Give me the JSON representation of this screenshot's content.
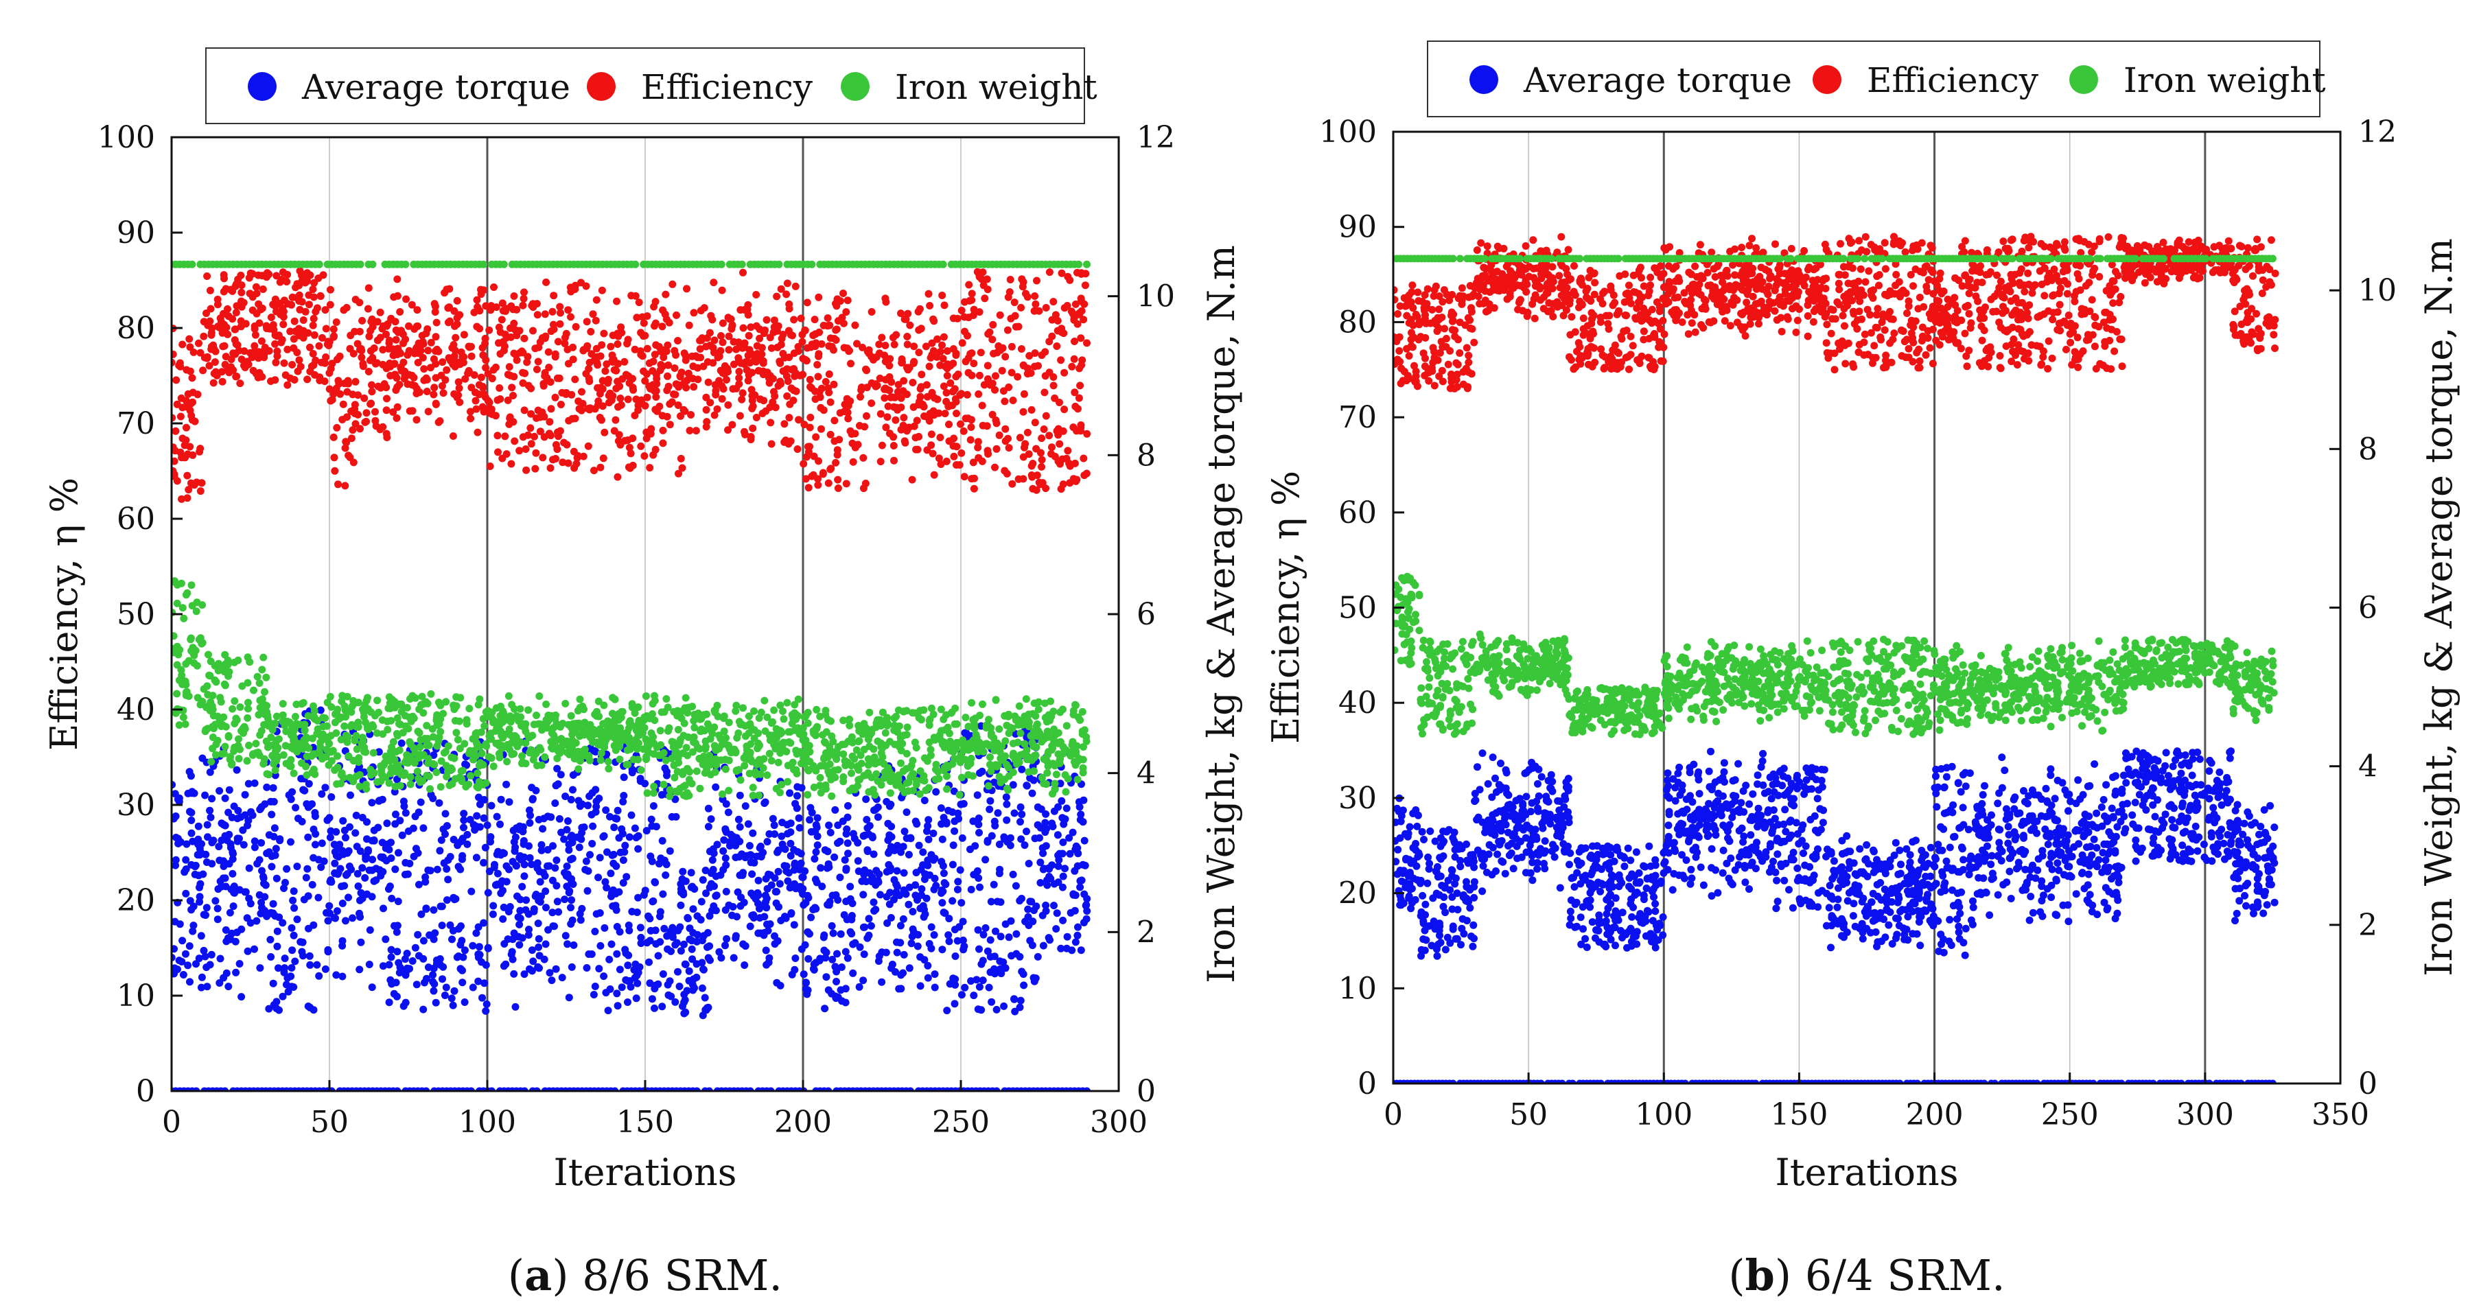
{
  "figure": {
    "panels": [
      {
        "caption_letter": "a",
        "caption_text": "8/6 SRM."
      },
      {
        "caption_letter": "b",
        "caption_text": "6/4 SRM."
      }
    ]
  },
  "chart_data": [
    {
      "type": "scatter",
      "panel": "a",
      "title": "(a) 8/6 SRM.",
      "xlabel": "Iterations",
      "ylabel_left": "Efficiency, η   %",
      "ylabel_right": "Iron Weight, kg & Average torque, N.m",
      "xlim": [
        0,
        300
      ],
      "ylim_left": [
        0,
        100
      ],
      "ylim_right": [
        0,
        12
      ],
      "x_ticks": [
        0,
        50,
        100,
        150,
        200,
        250,
        300
      ],
      "y_left_ticks": [
        0,
        10,
        20,
        30,
        40,
        50,
        60,
        70,
        80,
        90,
        100
      ],
      "y_right_ticks": [
        0,
        2,
        4,
        6,
        8,
        10,
        12
      ],
      "grid": "vertical",
      "major_vlines": [
        100,
        200
      ],
      "legend": [
        "Average torque",
        "Efficiency",
        "Iron weight"
      ],
      "legend_position": "top",
      "series": [
        {
          "name": "Average torque",
          "color": "#0a10f0",
          "axis": "right",
          "x_max": 290,
          "count": 2000,
          "segments": [
            [
              0,
              15,
              1.3,
              4.2,
              0
            ],
            [
              15,
              30,
              1.1,
              4.6,
              1
            ],
            [
              30,
              50,
              1.0,
              4.8,
              0
            ],
            [
              50,
              70,
              0.95,
              4.8,
              1
            ],
            [
              70,
              100,
              1.0,
              4.4,
              0
            ],
            [
              100,
              130,
              1.0,
              4.5,
              1
            ],
            [
              130,
              160,
              1.0,
              4.4,
              0
            ],
            [
              160,
              170,
              0.95,
              2.8,
              0
            ],
            [
              170,
              200,
              1.2,
              4.3,
              1
            ],
            [
              200,
              215,
              1.0,
              3.6,
              0
            ],
            [
              215,
              245,
              1.0,
              4.2,
              1
            ],
            [
              245,
              275,
              1.0,
              4.6,
              0
            ],
            [
              275,
              290,
              1.3,
              4.3,
              1
            ]
          ],
          "baseline_value": 0
        },
        {
          "name": "Efficiency",
          "color": "#ef1212",
          "axis": "left",
          "x_max": 290,
          "count": 1800,
          "segments": [
            [
              0,
              10,
              62,
              80,
              0
            ],
            [
              10,
              50,
              74,
              86,
              0
            ],
            [
              50,
              60,
              62,
              85,
              1
            ],
            [
              60,
              100,
              68,
              86,
              1
            ],
            [
              100,
              130,
              65,
              85,
              0
            ],
            [
              130,
              165,
              63,
              86,
              1
            ],
            [
              165,
              200,
              66,
              86,
              1
            ],
            [
              200,
              220,
              63,
              84,
              0
            ],
            [
              220,
              250,
              63,
              85,
              1
            ],
            [
              250,
              290,
              63,
              86,
              0
            ]
          ]
        },
        {
          "name": "Iron weight",
          "color": "#39c639",
          "axis": "right",
          "x_max": 290,
          "count": 1700,
          "segments": [
            [
              0,
              10,
              4.6,
              6.5,
              0
            ],
            [
              10,
              30,
              4.1,
              5.5,
              0
            ],
            [
              30,
              50,
              3.9,
              5.0,
              1
            ],
            [
              50,
              100,
              3.8,
              5.0,
              0
            ],
            [
              100,
              150,
              4.0,
              5.0,
              1
            ],
            [
              150,
              165,
              3.7,
              5.0,
              0
            ],
            [
              165,
              200,
              3.7,
              5.0,
              1
            ],
            [
              200,
              240,
              3.7,
              4.8,
              0
            ],
            [
              240,
              290,
              3.7,
              5.0,
              1
            ]
          ],
          "top_line_value": 10.4
        }
      ]
    },
    {
      "type": "scatter",
      "panel": "b",
      "title": "(b) 6/4 SRM.",
      "xlabel": "Iterations",
      "ylabel_left": "Efficiency, η   %",
      "ylabel_right": "Iron Weight, kg & Average torque, N.m",
      "xlim": [
        0,
        350
      ],
      "ylim_left": [
        0,
        100
      ],
      "ylim_right": [
        0,
        12
      ],
      "x_ticks": [
        0,
        50,
        100,
        150,
        200,
        250,
        300,
        350
      ],
      "y_left_ticks": [
        0,
        10,
        20,
        30,
        40,
        50,
        60,
        70,
        80,
        90,
        100
      ],
      "y_right_ticks": [
        0,
        2,
        4,
        6,
        8,
        10,
        12
      ],
      "grid": "vertical",
      "major_vlines": [
        100,
        200,
        300
      ],
      "legend": [
        "Average torque",
        "Efficiency",
        "Iron weight"
      ],
      "legend_position": "top",
      "series": [
        {
          "name": "Average torque",
          "color": "#0a10f0",
          "axis": "right",
          "x_max": 326,
          "count": 2000,
          "segments": [
            [
              0,
              10,
              2.2,
              3.6,
              0
            ],
            [
              10,
              30,
              1.6,
              3.2,
              0
            ],
            [
              30,
              65,
              2.4,
              4.2,
              1
            ],
            [
              65,
              100,
              1.7,
              3.0,
              0
            ],
            [
              100,
              140,
              2.3,
              4.2,
              1
            ],
            [
              140,
              160,
              2.2,
              4.0,
              0
            ],
            [
              160,
              200,
              1.6,
              3.2,
              1
            ],
            [
              200,
              215,
              1.6,
              4.0,
              0
            ],
            [
              215,
              270,
              1.8,
              4.2,
              1
            ],
            [
              270,
              310,
              2.8,
              4.2,
              0
            ],
            [
              310,
              326,
              2.0,
              3.6,
              1
            ]
          ],
          "baseline_value": 0
        },
        {
          "name": "Efficiency",
          "color": "#ef1212",
          "axis": "left",
          "x_max": 326,
          "count": 1800,
          "segments": [
            [
              0,
              30,
              73,
              84,
              0
            ],
            [
              30,
              65,
              80,
              89,
              1
            ],
            [
              65,
              100,
              75,
              86,
              0
            ],
            [
              100,
              160,
              78,
              89,
              1
            ],
            [
              160,
              200,
              75,
              89,
              0
            ],
            [
              200,
              210,
              75,
              86,
              1
            ],
            [
              210,
              270,
              75,
              89,
              0
            ],
            [
              270,
              310,
              84,
              89,
              1
            ],
            [
              310,
              326,
              77,
              89,
              0
            ]
          ]
        },
        {
          "name": "Iron weight",
          "color": "#39c639",
          "axis": "right",
          "x_max": 326,
          "count": 1700,
          "segments": [
            [
              0,
              10,
              5.2,
              6.4,
              0
            ],
            [
              10,
              30,
              4.4,
              5.6,
              0
            ],
            [
              30,
              65,
              4.8,
              5.7,
              1
            ],
            [
              65,
              100,
              4.4,
              5.0,
              0
            ],
            [
              100,
              160,
              4.5,
              5.6,
              1
            ],
            [
              160,
              200,
              4.4,
              5.6,
              0
            ],
            [
              200,
              270,
              4.4,
              5.6,
              1
            ],
            [
              270,
              310,
              5.0,
              5.6,
              0
            ],
            [
              310,
              326,
              4.5,
              5.6,
              1
            ]
          ],
          "top_line_value": 10.4
        }
      ]
    }
  ]
}
